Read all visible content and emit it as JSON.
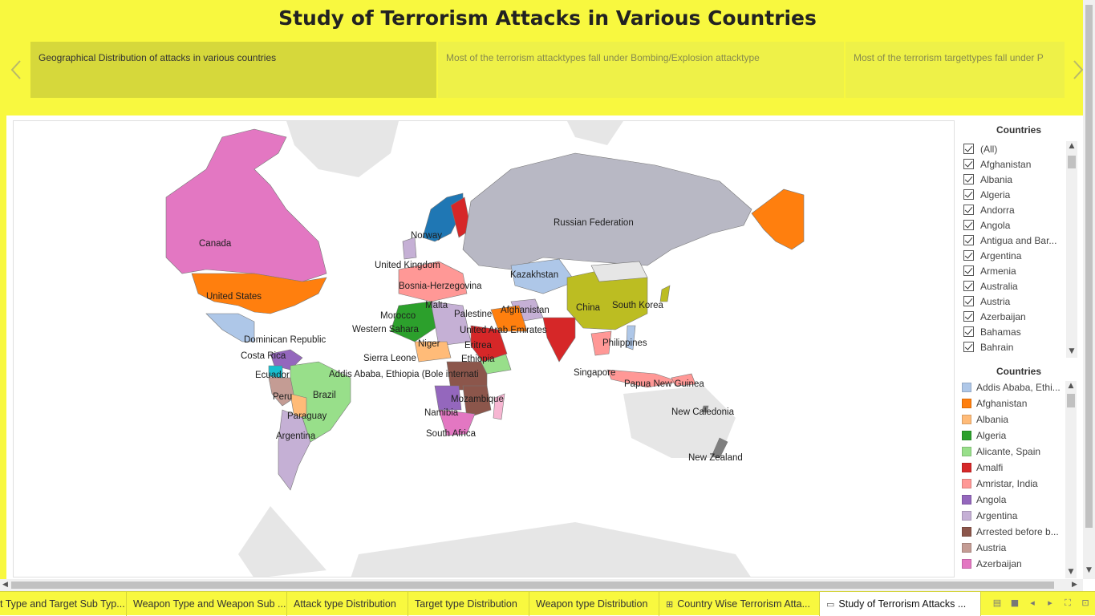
{
  "story": {
    "title": "Study of Terrorism Attacks in Various Countries",
    "points": [
      "Geographical Distribution of attacks in various countries",
      "Most of the terrorism attacktypes fall under Bombing/Explosion attacktype",
      "Most of the terrorism targettypes fall under P"
    ],
    "prev_icon": "chevron-left-icon",
    "next_icon": "chevron-right-icon"
  },
  "map": {
    "labels": [
      "Canada",
      "United States",
      "Dominican Republic",
      "Costa Rica",
      "Ecuador",
      "Peru",
      "Brazil",
      "Paraguay",
      "Argentina",
      "Norway",
      "United Kingdom",
      "Bosnia-Herzegovina",
      "Morocco",
      "Malta",
      "Palestine",
      "Western Sahara",
      "Niger",
      "Sierra Leone",
      "Eritrea",
      "Ethiopia",
      "Addis Ababa, Ethiopia (Bole internati",
      "Mozambique",
      "Namibia",
      "South Africa",
      "Russian Federation",
      "Kazakhstan",
      "Afghanistan",
      "United Arab Emirates",
      "China",
      "South Korea",
      "Philippines",
      "Singapore",
      "Papua New Guinea",
      "New Caledonia",
      "New Zealand"
    ]
  },
  "filter": {
    "title": "Countries",
    "items": [
      "(All)",
      "Afghanistan",
      "Albania",
      "Algeria",
      "Andorra",
      "Angola",
      "Antigua and Bar...",
      "Argentina",
      "Armenia",
      "Australia",
      "Austria",
      "Azerbaijan",
      "Bahamas",
      "Bahrain"
    ]
  },
  "legend": {
    "title": "Countries",
    "items": [
      {
        "label": "Addis Ababa, Ethi...",
        "color": "#aec7e8"
      },
      {
        "label": "Afghanistan",
        "color": "#ff7f0e"
      },
      {
        "label": "Albania",
        "color": "#ffbb78"
      },
      {
        "label": "Algeria",
        "color": "#2ca02c"
      },
      {
        "label": "Alicante, Spain",
        "color": "#98df8a"
      },
      {
        "label": "Amalfi",
        "color": "#d62728"
      },
      {
        "label": "Amristar, India",
        "color": "#ff9896"
      },
      {
        "label": "Angola",
        "color": "#9467bd"
      },
      {
        "label": "Argentina",
        "color": "#c5b0d5"
      },
      {
        "label": "Arrested before b...",
        "color": "#8c564b"
      },
      {
        "label": "Austria",
        "color": "#c49c94"
      },
      {
        "label": "Azerbaijan",
        "color": "#e377c2"
      }
    ]
  },
  "sheet_tabs": [
    "t Type and Target Sub Typ...",
    "Weapon Type and Weapon Sub ...",
    "Attack type Distribution",
    "Target type Distribution",
    "Weapon type Distribution",
    "Country Wise Terrorism Atta...",
    "Study of Terrorism Attacks ..."
  ],
  "colors": {
    "story_background": "#f8f83f",
    "active_point": "#d6d83b",
    "inactive_point": "#eef148"
  }
}
